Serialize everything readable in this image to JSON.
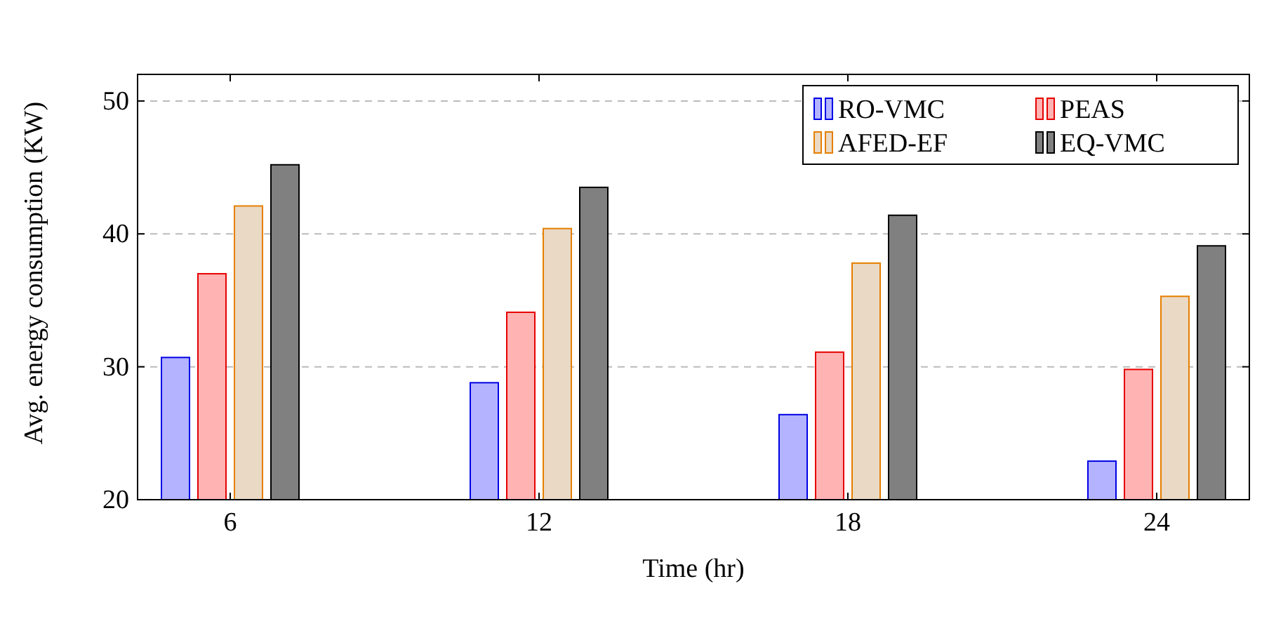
{
  "chart_data": {
    "type": "bar",
    "xlabel": "Time (hr)",
    "ylabel": "Avg. energy consumption (KW)",
    "x": [
      6,
      12,
      18,
      24
    ],
    "xlim": [
      4.2,
      25.8
    ],
    "xticks": [
      6,
      12,
      18,
      24
    ],
    "ylim": [
      20,
      52
    ],
    "yticks": [
      20,
      30,
      40,
      50
    ],
    "grid": "y",
    "legend": "top right",
    "series": [
      {
        "name": "RO-VMC",
        "color": "#b3b3ff",
        "values": [
          30.7,
          28.8,
          26.4,
          22.9
        ]
      },
      {
        "name": "PEAS",
        "color": "#ffb3b3",
        "values": [
          37.0,
          34.1,
          31.1,
          29.8
        ]
      },
      {
        "name": "AFED-EF",
        "color": "#ead9c4",
        "values": [
          42.1,
          40.4,
          37.8,
          35.3
        ]
      },
      {
        "name": "EQ-VMC",
        "color": "#808080",
        "values": [
          45.2,
          43.5,
          41.4,
          39.1
        ]
      }
    ]
  }
}
